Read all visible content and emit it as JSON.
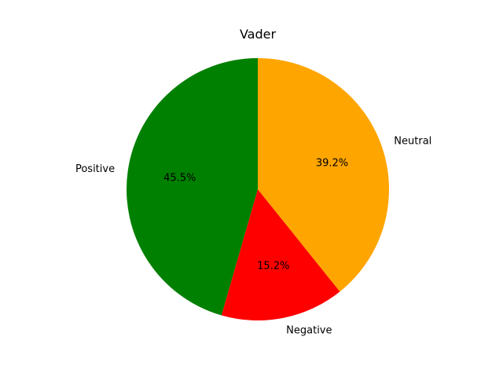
{
  "chart_data": {
    "type": "pie",
    "title": "Vader",
    "autopct_format": "%.1f%%",
    "start_angle_deg": 90,
    "direction": "counterclockwise",
    "slices": [
      {
        "label": "Positive",
        "value": 45.5,
        "color": "#008000",
        "pct_text": "45.5%"
      },
      {
        "label": "Negative",
        "value": 15.2,
        "color": "#ff0000",
        "pct_text": "15.2%"
      },
      {
        "label": "Neutral",
        "value": 39.2,
        "color": "#ffa500",
        "pct_text": "39.2%"
      }
    ]
  }
}
